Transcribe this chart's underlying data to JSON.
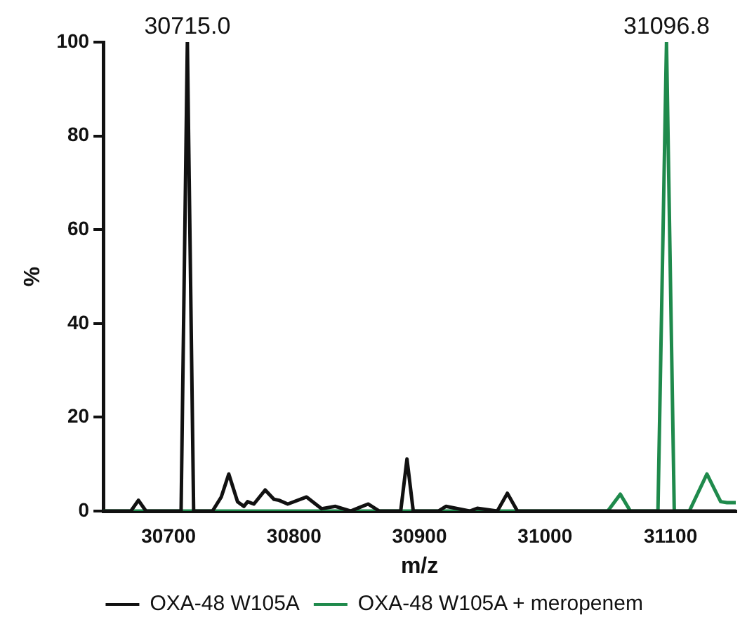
{
  "chart_data": {
    "type": "line",
    "xlabel": "m/z",
    "ylabel": "%",
    "xlim": [
      30648,
      31152
    ],
    "ylim": [
      0,
      100
    ],
    "xticks": [
      30700,
      30800,
      30900,
      31000,
      31100
    ],
    "yticks": [
      0,
      20,
      40,
      60,
      80,
      100
    ],
    "grid": false,
    "legend": "bottom",
    "marker": "none",
    "line_style": "solid",
    "annotations": [
      {
        "text": "30715.0",
        "x": 30715,
        "y": 100
      },
      {
        "text": "31096.8",
        "x": 31096.8,
        "y": 100
      }
    ],
    "series": [
      {
        "name": "OXA-48 W105A",
        "color": "#111111",
        "x": [
          30648,
          30670,
          30676,
          30682,
          30710,
          30715,
          30720,
          30735,
          30742,
          30748,
          30755,
          30760,
          30763,
          30768,
          30777,
          30784,
          30788,
          30795,
          30810,
          30822,
          30833,
          30845,
          30859,
          30868,
          30885,
          30890,
          30895,
          30915,
          30921,
          30940,
          30946,
          30962,
          30970,
          30978,
          31000,
          31152
        ],
        "values": [
          0,
          0,
          2.3,
          0,
          0,
          100,
          0,
          0,
          3,
          7.9,
          2,
          1,
          2,
          1.5,
          4.5,
          2.5,
          2.3,
          1.5,
          3,
          0.5,
          1,
          0,
          1.5,
          0,
          0,
          11.1,
          0,
          0,
          1,
          0,
          0.6,
          0,
          3.8,
          0,
          0,
          0
        ]
      },
      {
        "name": "OXA-48 W105A + meropenem",
        "color": "#1f8a4c",
        "x": [
          30648,
          31050,
          31060,
          31068,
          31090,
          31096.8,
          31103,
          31115,
          31129,
          31140,
          31145,
          31152
        ],
        "values": [
          0,
          0,
          3.6,
          0,
          0,
          100,
          0,
          0,
          7.9,
          2,
          1.8,
          1.8
        ]
      }
    ]
  }
}
